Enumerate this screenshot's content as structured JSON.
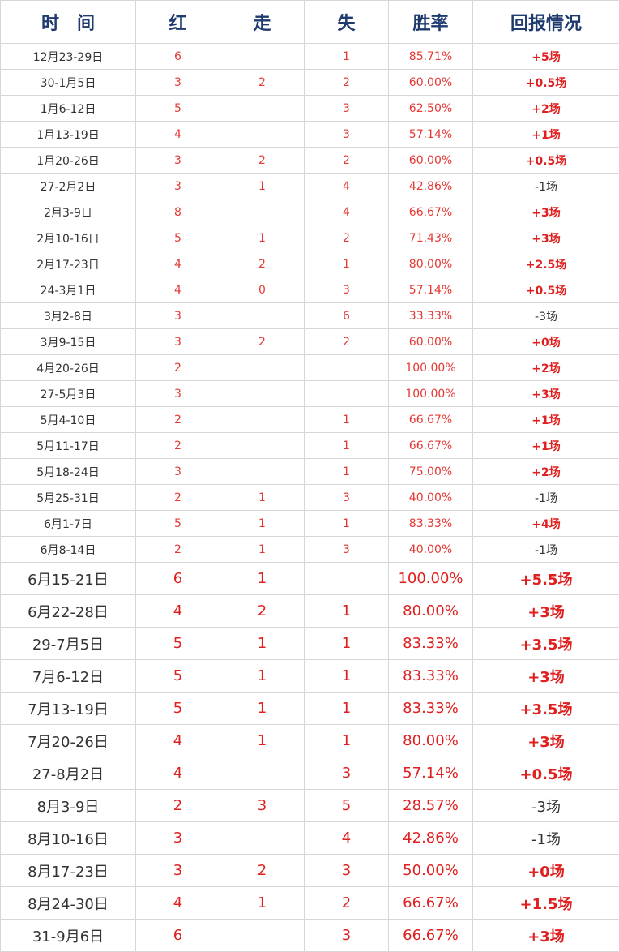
{
  "headers": [
    "时　间",
    "红",
    "走",
    "失",
    "胜率",
    "回报情况"
  ],
  "rows": [
    {
      "date": "12月23-29日",
      "red": "6",
      "walk": "",
      "lose": "1",
      "rate": "85.71%",
      "ret": "+5场",
      "positive": true,
      "large": false
    },
    {
      "date": "30-1月5日",
      "red": "3",
      "walk": "2",
      "lose": "2",
      "rate": "60.00%",
      "ret": "+0.5场",
      "positive": true,
      "large": false
    },
    {
      "date": "1月6-12日",
      "red": "5",
      "walk": "",
      "lose": "3",
      "rate": "62.50%",
      "ret": "+2场",
      "positive": true,
      "large": false
    },
    {
      "date": "1月13-19日",
      "red": "4",
      "walk": "",
      "lose": "3",
      "rate": "57.14%",
      "ret": "+1场",
      "positive": true,
      "large": false
    },
    {
      "date": "1月20-26日",
      "red": "3",
      "walk": "2",
      "lose": "2",
      "rate": "60.00%",
      "ret": "+0.5场",
      "positive": true,
      "large": false
    },
    {
      "date": "27-2月2日",
      "red": "3",
      "walk": "1",
      "lose": "4",
      "rate": "42.86%",
      "ret": "-1场",
      "positive": false,
      "large": false
    },
    {
      "date": "2月3-9日",
      "red": "8",
      "walk": "",
      "lose": "4",
      "rate": "66.67%",
      "ret": "+3场",
      "positive": true,
      "large": false
    },
    {
      "date": "2月10-16日",
      "red": "5",
      "walk": "1",
      "lose": "2",
      "rate": "71.43%",
      "ret": "+3场",
      "positive": true,
      "large": false
    },
    {
      "date": "2月17-23日",
      "red": "4",
      "walk": "2",
      "lose": "1",
      "rate": "80.00%",
      "ret": "+2.5场",
      "positive": true,
      "large": false
    },
    {
      "date": "24-3月1日",
      "red": "4",
      "walk": "0",
      "lose": "3",
      "rate": "57.14%",
      "ret": "+0.5场",
      "positive": true,
      "large": false
    },
    {
      "date": "3月2-8日",
      "red": "3",
      "walk": "",
      "lose": "6",
      "rate": "33.33%",
      "ret": "-3场",
      "positive": false,
      "large": false
    },
    {
      "date": "3月9-15日",
      "red": "3",
      "walk": "2",
      "lose": "2",
      "rate": "60.00%",
      "ret": "+0场",
      "positive": true,
      "large": false
    },
    {
      "date": "4月20-26日",
      "red": "2",
      "walk": "",
      "lose": "",
      "rate": "100.00%",
      "ret": "+2场",
      "positive": true,
      "large": false
    },
    {
      "date": "27-5月3日",
      "red": "3",
      "walk": "",
      "lose": "",
      "rate": "100.00%",
      "ret": "+3场",
      "positive": true,
      "large": false
    },
    {
      "date": "5月4-10日",
      "red": "2",
      "walk": "",
      "lose": "1",
      "rate": "66.67%",
      "ret": "+1场",
      "positive": true,
      "large": false
    },
    {
      "date": "5月11-17日",
      "red": "2",
      "walk": "",
      "lose": "1",
      "rate": "66.67%",
      "ret": "+1场",
      "positive": true,
      "large": false
    },
    {
      "date": "5月18-24日",
      "red": "3",
      "walk": "",
      "lose": "1",
      "rate": "75.00%",
      "ret": "+2场",
      "positive": true,
      "large": false
    },
    {
      "date": "5月25-31日",
      "red": "2",
      "walk": "1",
      "lose": "3",
      "rate": "40.00%",
      "ret": "-1场",
      "positive": false,
      "large": false
    },
    {
      "date": "6月1-7日",
      "red": "5",
      "walk": "1",
      "lose": "1",
      "rate": "83.33%",
      "ret": "+4场",
      "positive": true,
      "large": false
    },
    {
      "date": "6月8-14日",
      "red": "2",
      "walk": "1",
      "lose": "3",
      "rate": "40.00%",
      "ret": "-1场",
      "positive": false,
      "large": false
    },
    {
      "date": "6月15-21日",
      "red": "6",
      "walk": "1",
      "lose": "",
      "rate": "100.00%",
      "ret": "+5.5场",
      "positive": true,
      "large": true
    },
    {
      "date": "6月22-28日",
      "red": "4",
      "walk": "2",
      "lose": "1",
      "rate": "80.00%",
      "ret": "+3场",
      "positive": true,
      "large": true
    },
    {
      "date": "29-7月5日",
      "red": "5",
      "walk": "1",
      "lose": "1",
      "rate": "83.33%",
      "ret": "+3.5场",
      "positive": true,
      "large": true
    },
    {
      "date": "7月6-12日",
      "red": "5",
      "walk": "1",
      "lose": "1",
      "rate": "83.33%",
      "ret": "+3场",
      "positive": true,
      "large": true
    },
    {
      "date": "7月13-19日",
      "red": "5",
      "walk": "1",
      "lose": "1",
      "rate": "83.33%",
      "ret": "+3.5场",
      "positive": true,
      "large": true
    },
    {
      "date": "7月20-26日",
      "red": "4",
      "walk": "1",
      "lose": "1",
      "rate": "80.00%",
      "ret": "+3场",
      "positive": true,
      "large": true
    },
    {
      "date": "27-8月2日",
      "red": "4",
      "walk": "",
      "lose": "3",
      "rate": "57.14%",
      "ret": "+0.5场",
      "positive": true,
      "large": true
    },
    {
      "date": "8月3-9日",
      "red": "2",
      "walk": "3",
      "lose": "5",
      "rate": "28.57%",
      "ret": "-3场",
      "positive": false,
      "large": true
    },
    {
      "date": "8月10-16日",
      "red": "3",
      "walk": "",
      "lose": "4",
      "rate": "42.86%",
      "ret": "-1场",
      "positive": false,
      "large": true
    },
    {
      "date": "8月17-23日",
      "red": "3",
      "walk": "2",
      "lose": "3",
      "rate": "50.00%",
      "ret": "+0场",
      "positive": true,
      "large": true
    },
    {
      "date": "8月24-30日",
      "red": "4",
      "walk": "1",
      "lose": "2",
      "rate": "66.67%",
      "ret": "+1.5场",
      "positive": true,
      "large": true
    },
    {
      "date": "31-9月6日",
      "red": "6",
      "walk": "",
      "lose": "3",
      "rate": "66.67%",
      "ret": "+3场",
      "positive": true,
      "large": true
    }
  ]
}
